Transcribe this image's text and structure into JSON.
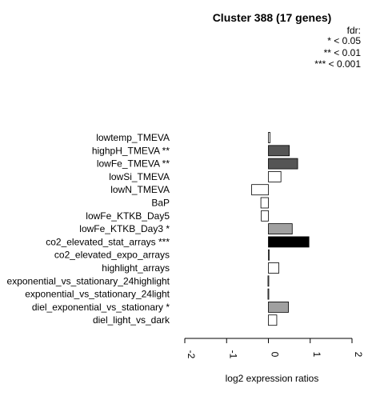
{
  "chart_data": {
    "type": "bar",
    "orientation": "horizontal",
    "title": "Cluster 388 (17 genes)",
    "xlabel": "log2 expression ratios",
    "ylabel": "",
    "xlim": [
      -2,
      2
    ],
    "xticks": [
      "-2",
      "-1",
      "0",
      "1",
      "2"
    ],
    "legend": {
      "title": "fdr:",
      "entries": [
        "* < 0.05",
        "** < 0.01",
        "*** < 0.001"
      ],
      "placement": "top-right"
    },
    "categories": [
      "lowtemp_TMEVA",
      "highpH_TMEVA **",
      "lowFe_TMEVA **",
      "lowSi_TMEVA",
      "lowN_TMEVA",
      "BaP",
      "lowFe_KTKB_Day5",
      "lowFe_KTKB_Day3 *",
      "co2_elevated_stat_arrays ***",
      "co2_elevated_expo_arrays",
      "highlight_arrays",
      "exponential_vs_stationary_24highlight",
      "exponential_vs_stationary_24light",
      "diel_exponential_vs_stationary *",
      "diel_light_vs_dark"
    ],
    "values": [
      0.04,
      0.5,
      0.7,
      0.3,
      -0.4,
      -0.18,
      -0.17,
      0.57,
      0.97,
      0.01,
      0.25,
      -0.01,
      -0.01,
      0.48,
      0.2
    ],
    "fills": [
      "#ffffff",
      "#555555",
      "#555555",
      "#ffffff",
      "#ffffff",
      "#ffffff",
      "#ffffff",
      "#a0a0a0",
      "#000000",
      "#ffffff",
      "#ffffff",
      "#ffffff",
      "#ffffff",
      "#a0a0a0",
      "#ffffff"
    ]
  }
}
